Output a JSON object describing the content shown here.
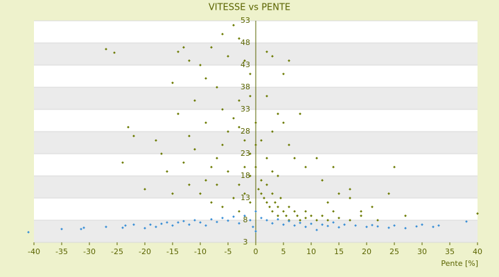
{
  "chart_data": {
    "type": "scatter",
    "title": "VITESSE vs PENTE",
    "x_label": "Pente [%]",
    "xlim": [
      -40,
      40
    ],
    "xticks": [
      -40,
      -35,
      -30,
      -25,
      -20,
      -15,
      -10,
      -5,
      0,
      5,
      10,
      15,
      20,
      25,
      30,
      35,
      40
    ],
    "ylim": [
      3,
      53
    ],
    "yticks": [
      3,
      8,
      13,
      18,
      23,
      28,
      33,
      38,
      43,
      48,
      53
    ],
    "grid": true,
    "series": [
      {
        "color": "#6b7a00",
        "x": [
          -27,
          -25.5,
          -23,
          -22,
          -24,
          -20,
          -18,
          -17,
          -16,
          -15,
          -14,
          -14,
          -13,
          -12,
          -11,
          -10,
          -9,
          -8,
          -7,
          -6,
          -5,
          -4,
          -3,
          -2,
          -1,
          -3,
          -4,
          -5,
          -6,
          -7,
          -8,
          -9,
          -10,
          -11,
          -12,
          -13,
          -9,
          -6,
          -3,
          -2,
          -1,
          -2,
          -1,
          -3,
          -4,
          -1,
          -2,
          -5,
          -7,
          -8,
          -6,
          -3,
          0,
          0,
          0,
          -1,
          0.5,
          1,
          1,
          1.5,
          2,
          2,
          2.5,
          3,
          3,
          3.5,
          4,
          4,
          4.5,
          5,
          5.5,
          6,
          6,
          7,
          7.5,
          8,
          9,
          9,
          10,
          11,
          12,
          13,
          14,
          15,
          17,
          19,
          2,
          3,
          6,
          5,
          2,
          4,
          3,
          5,
          8,
          6,
          7,
          9,
          11,
          12,
          14,
          13,
          17,
          15,
          17,
          19,
          21,
          22,
          24,
          25,
          27,
          40,
          2,
          1,
          3,
          4,
          -15,
          -12
        ],
        "y": [
          46.6,
          45.8,
          29,
          27,
          21,
          15,
          26,
          23,
          19,
          39,
          32,
          46,
          47,
          44,
          35,
          43,
          40,
          47,
          38,
          50,
          45,
          52,
          49,
          44,
          41,
          35,
          31,
          28,
          25,
          22,
          20,
          17,
          14,
          24,
          27,
          21,
          30,
          33,
          29,
          26,
          23,
          20,
          18,
          16,
          13,
          12,
          14,
          19,
          16,
          12,
          11,
          10,
          30,
          25,
          20,
          36,
          15,
          17,
          14,
          13,
          12,
          16,
          11,
          14,
          10,
          12,
          9,
          11,
          13,
          10,
          9,
          11,
          8,
          10,
          9,
          8,
          10,
          8.5,
          9,
          8,
          9,
          8,
          10,
          8.5,
          8,
          9,
          46,
          45,
          44,
          41,
          36,
          32,
          28,
          30,
          32,
          25,
          22,
          20,
          22,
          17,
          20,
          12,
          15,
          14,
          13,
          10,
          11,
          8,
          14,
          20,
          9,
          9.5,
          22,
          26,
          19,
          18,
          14,
          16
        ]
      },
      {
        "color": "#3a8fd6",
        "x": [
          -41,
          -35,
          -31,
          -31.5,
          -27,
          -24,
          -23.5,
          -22,
          -20,
          -19,
          -18,
          -17,
          -16,
          -15,
          -14,
          -13,
          -12,
          -11,
          -10,
          -9,
          -8,
          -7,
          -6,
          -5,
          -4,
          -3,
          -2,
          -1,
          -0.5,
          0,
          0,
          1,
          2,
          3,
          4,
          5,
          6,
          7,
          8,
          9,
          10,
          11,
          12,
          13,
          14,
          15,
          16,
          18,
          20,
          21,
          22,
          24,
          25,
          27,
          29,
          30,
          32,
          33,
          38
        ],
        "y": [
          5.3,
          6,
          6.3,
          6,
          6.5,
          6.3,
          6.8,
          7,
          6.2,
          7,
          6.5,
          7.2,
          7.5,
          6.8,
          7.5,
          7.8,
          7,
          8,
          7.5,
          6.8,
          8.2,
          7.6,
          8.5,
          7.9,
          8.8,
          7.3,
          9,
          8,
          6.5,
          10,
          5.5,
          8.5,
          8,
          7.3,
          8.2,
          7,
          7.8,
          6.8,
          7.4,
          6.5,
          7.2,
          5.8,
          7,
          6.7,
          7.5,
          6.4,
          7,
          6.8,
          6.5,
          6.9,
          6.6,
          6.3,
          6.8,
          6.2,
          6.6,
          7,
          6.5,
          6.8,
          7.7
        ]
      }
    ]
  }
}
